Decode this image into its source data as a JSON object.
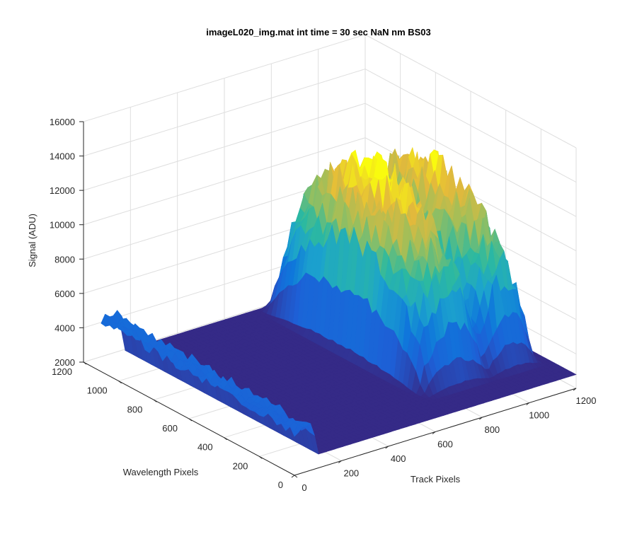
{
  "chart_data": {
    "type": "surface",
    "title": "imageL020_img.mat int time = 30 sec  NaN nm BS03",
    "xlabel": "Track Pixels",
    "ylabel": "Wavelength Pixels",
    "zlabel": "Signal (ADU)",
    "xlim": [
      0,
      1200
    ],
    "ylim": [
      0,
      1200
    ],
    "zlim": [
      2000,
      16000
    ],
    "x_ticks": [
      "0",
      "200",
      "400",
      "600",
      "800",
      "1000",
      "1200"
    ],
    "y_ticks": [
      "0",
      "200",
      "400",
      "600",
      "800",
      "1000",
      "1200"
    ],
    "z_ticks": [
      "2000",
      "4000",
      "6000",
      "8000",
      "10000",
      "12000",
      "14000",
      "16000"
    ],
    "grid": true,
    "colormap": "parula",
    "baseline": 2800,
    "features": [
      {
        "x_range": [
          0,
          80
        ],
        "y_range": [
          0,
          1100
        ],
        "peak": 5000
      },
      {
        "x_range": [
          700,
          940
        ],
        "y_range": [
          250,
          1000
        ],
        "peak": 12500
      },
      {
        "x_range": [
          960,
          1150
        ],
        "y_range": [
          250,
          1000
        ],
        "peak": 11800
      }
    ]
  }
}
